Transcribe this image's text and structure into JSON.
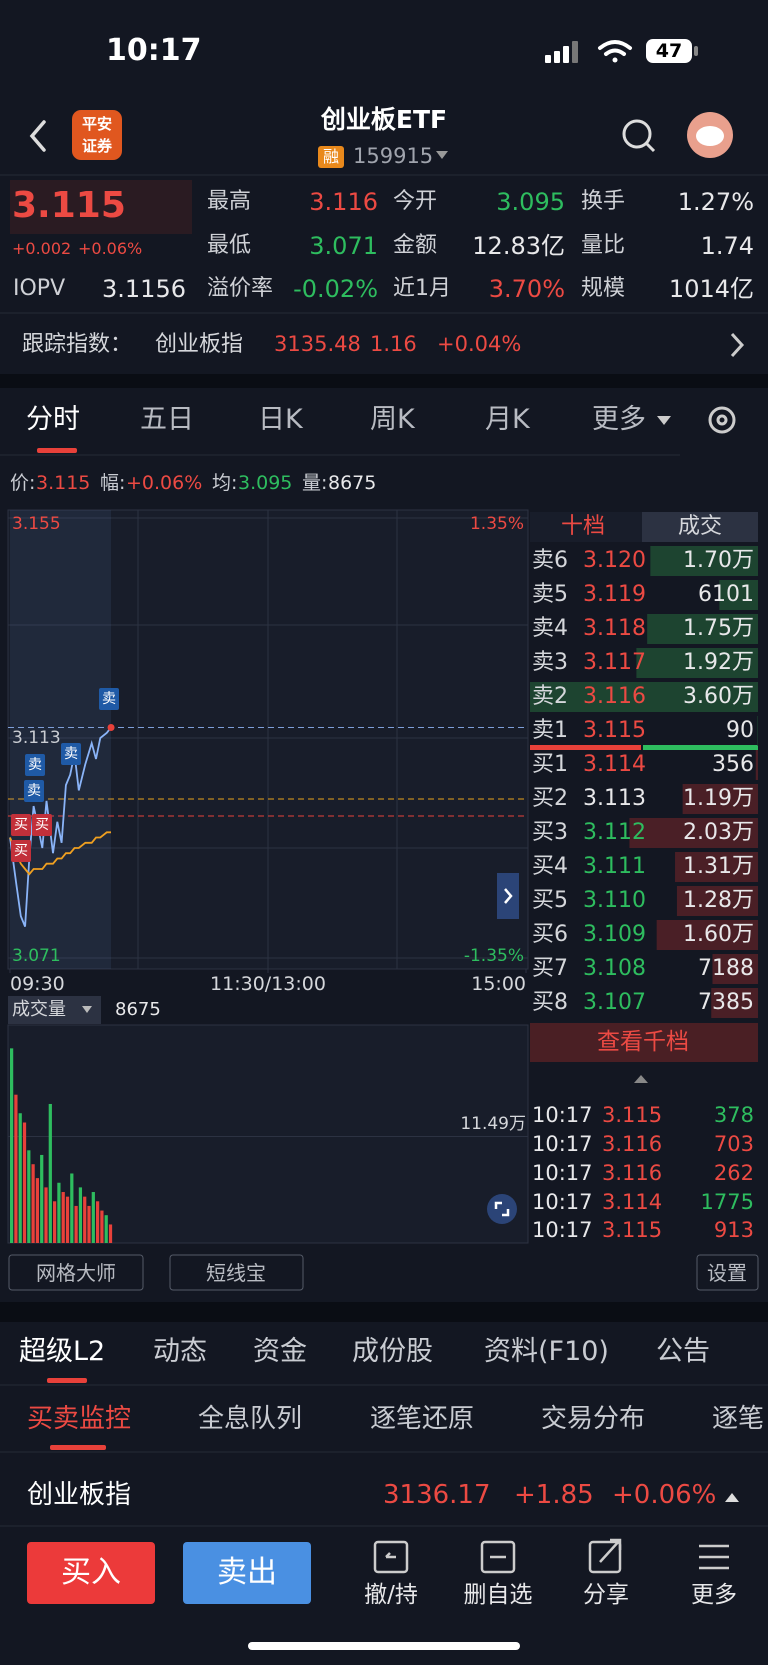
{
  "status": {
    "time": "10:17",
    "battery": "47"
  },
  "header": {
    "broker": [
      "平安",
      "证券"
    ],
    "title": "创业板ETF",
    "badge": "融",
    "code": "159915"
  },
  "quote": {
    "price": "3.115",
    "change": "+0.002",
    "change_pct": "+0.06%",
    "stats": [
      {
        "label": "最高",
        "value": "3.116"
      },
      {
        "label": "今开",
        "value": "3.095"
      },
      {
        "label": "换手",
        "value": "1.27%"
      },
      {
        "label": "最低",
        "value": "3.071"
      },
      {
        "label": "金额",
        "value": "12.83亿"
      },
      {
        "label": "量比",
        "value": "1.74"
      },
      {
        "label": "IOPV",
        "value": "3.1156"
      },
      {
        "label": "溢价率",
        "value": "-0.02%"
      },
      {
        "label": "近1月",
        "value": "3.70%"
      },
      {
        "label": "规模",
        "value": "1014亿"
      }
    ]
  },
  "index_bar": {
    "label": "跟踪指数：",
    "name": "创业板指",
    "value": "3135.48",
    "change": "1.16",
    "change_pct": "+0.04%"
  },
  "chart_tabs": [
    "分时",
    "五日",
    "日K",
    "周K",
    "月K",
    "更多"
  ],
  "info": [
    {
      "label": "价:",
      "value": "3.115"
    },
    {
      "label": "幅:",
      "value": "+0.06%"
    },
    {
      "label": "均:",
      "value": "3.095"
    },
    {
      "label": "量:",
      "value": "8675"
    }
  ],
  "chart_data": [
    {
      "type": "line",
      "x": [
        0,
        3,
        5,
        7,
        9,
        11,
        13,
        15,
        17,
        20,
        22,
        24,
        26,
        28,
        30,
        32,
        35,
        38,
        40,
        42,
        45,
        47
      ],
      "xlim": [
        0,
        240
      ],
      "xticks": [
        {
          "value": 0,
          "label": "09:30"
        },
        {
          "value": 120,
          "label": "11:30/13:00"
        },
        {
          "value": 240,
          "label": "15:00"
        }
      ],
      "ylim": [
        3.071,
        3.155
      ],
      "yticks": [
        3.071,
        3.113,
        3.155
      ],
      "y2lim": [
        -1.35,
        1.35
      ],
      "y2ticks": [
        {
          "value": -1.35,
          "label": "-1.35%"
        },
        {
          "value": 1.35,
          "label": "1.35%"
        }
      ],
      "series": [
        {
          "color": "#8ab4f8",
          "values": [
            3.094,
            3.085,
            3.079,
            3.077,
            3.09,
            3.1,
            3.096,
            3.092,
            3.101,
            3.091,
            3.097,
            3.093,
            3.104,
            3.106,
            3.11,
            3.103,
            3.108,
            3.112,
            3.109,
            3.113,
            3.114,
            3.115
          ]
        },
        {
          "color": "#f0a020",
          "values": [
            3.094,
            3.091,
            3.089,
            3.088,
            3.087,
            3.088,
            3.088,
            3.088,
            3.089,
            3.089,
            3.09,
            3.09,
            3.091,
            3.091,
            3.092,
            3.092,
            3.093,
            3.093,
            3.094,
            3.094,
            3.095,
            3.095
          ]
        }
      ],
      "trade_marks": [
        "卖",
        "卖",
        "卖",
        "卖",
        "买",
        "买",
        "买"
      ]
    },
    {
      "type": "bar",
      "title": "成交量",
      "latest": 8675,
      "x": [
        0,
        2,
        4,
        6,
        8,
        10,
        12,
        14,
        16,
        18,
        20,
        22,
        24,
        26,
        28,
        30,
        32,
        34,
        36,
        38,
        40,
        42,
        44,
        46
      ],
      "xlim": [
        0,
        240
      ],
      "values": [
        210000,
        160000,
        140000,
        130000,
        100000,
        85000,
        70000,
        95000,
        60000,
        150000,
        45000,
        65000,
        55000,
        50000,
        75000,
        40000,
        60000,
        50000,
        40000,
        55000,
        45000,
        35000,
        30000,
        20000
      ],
      "colors": [
        "#2ebd5f",
        "#e8413a",
        "#2ebd5f",
        "#e8413a",
        "#2ebd5f",
        "#e8413a",
        "#e8413a",
        "#2ebd5f",
        "#e8413a",
        "#2ebd5f",
        "#e8413a",
        "#2ebd5f",
        "#e8413a",
        "#e8413a",
        "#2ebd5f",
        "#e8413a",
        "#2ebd5f",
        "#e8413a",
        "#e8413a",
        "#2ebd5f",
        "#e8413a",
        "#e8413a",
        "#2ebd5f",
        "#e8413a"
      ],
      "ylim": [
        0,
        229800
      ],
      "yticks": [
        {
          "value": 114900,
          "label": "11.49万"
        }
      ]
    }
  ],
  "order_book": {
    "tabs": [
      "十档",
      "成交"
    ],
    "asks": {
      "labels": [
        "卖6",
        "卖5",
        "卖4",
        "卖3",
        "卖2",
        "卖1"
      ],
      "prices": [
        "3.120",
        "3.119",
        "3.118",
        "3.117",
        "3.116",
        "3.115"
      ],
      "values": [
        17000,
        6101,
        17500,
        19200,
        36000,
        90
      ],
      "value_labels": [
        "1.70万",
        "6101",
        "1.75万",
        "1.92万",
        "3.60万",
        "90"
      ]
    },
    "bids": {
      "labels": [
        "买1",
        "买2",
        "买3",
        "买4",
        "买5",
        "买6",
        "买7",
        "买8"
      ],
      "prices": [
        "3.114",
        "3.113",
        "3.112",
        "3.111",
        "3.110",
        "3.109",
        "3.108",
        "3.107"
      ],
      "values": [
        356,
        11900,
        20300,
        13100,
        12800,
        16000,
        7188,
        7385
      ],
      "value_labels": [
        "356",
        "1.19万",
        "2.03万",
        "1.31万",
        "1.28万",
        "1.60万",
        "7188",
        "7385"
      ]
    },
    "more": "查看千档"
  },
  "trades": {
    "times": [
      "10:17",
      "10:17",
      "10:17",
      "10:17",
      "10:17"
    ],
    "prices": [
      "3.115",
      "3.116",
      "3.116",
      "3.114",
      "3.115"
    ],
    "volumes": [
      378,
      703,
      262,
      1775,
      913
    ]
  },
  "tools": [
    "网格大师",
    "短线宝",
    "设置"
  ],
  "tabs": [
    "超级L2",
    "动态",
    "资金",
    "成份股",
    "资料(F10)",
    "公告"
  ],
  "sub_tabs": [
    "买卖监控",
    "全息队列",
    "逐笔还原",
    "交易分布",
    "逐笔"
  ],
  "index_row": {
    "name": "创业板指",
    "value": "3136.17",
    "change": "+1.85",
    "change_pct": "+0.06%"
  },
  "actions": {
    "buy": "买入",
    "sell": "卖出",
    "tools": [
      "撤/持",
      "删自选",
      "分享",
      "更多"
    ]
  }
}
